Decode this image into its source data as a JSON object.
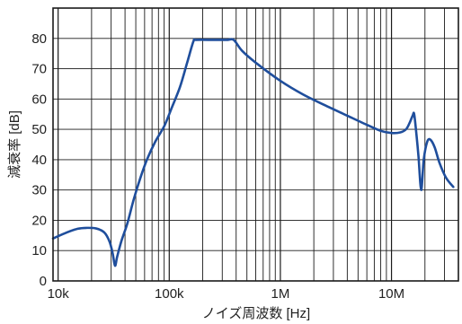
{
  "chart_data": {
    "type": "line",
    "xlabel": "ノイズ周波数 [Hz]",
    "ylabel": "減衰率 [dB]",
    "x_scale": "log",
    "xlim": [
      9000,
      40000000
    ],
    "ylim": [
      0,
      90
    ],
    "x_ticks": [
      {
        "value": 10000,
        "label": "10k"
      },
      {
        "value": 100000,
        "label": "100k"
      },
      {
        "value": 1000000,
        "label": "1M"
      },
      {
        "value": 10000000,
        "label": "10M"
      }
    ],
    "y_ticks": [
      0,
      10,
      20,
      30,
      40,
      50,
      60,
      70,
      80
    ],
    "grid": true,
    "line_color": "#1f4e9c",
    "series": [
      {
        "points": [
          [
            9000,
            14
          ],
          [
            12000,
            16
          ],
          [
            15000,
            17.2
          ],
          [
            18000,
            17.5
          ],
          [
            22000,
            17.3
          ],
          [
            26000,
            16
          ],
          [
            29000,
            13
          ],
          [
            31000,
            9
          ],
          [
            32500,
            5
          ],
          [
            34000,
            8
          ],
          [
            37000,
            13
          ],
          [
            42000,
            19
          ],
          [
            48000,
            27
          ],
          [
            55000,
            34
          ],
          [
            63000,
            40
          ],
          [
            75000,
            46
          ],
          [
            90000,
            51
          ],
          [
            105000,
            57
          ],
          [
            125000,
            64
          ],
          [
            145000,
            72
          ],
          [
            165000,
            79
          ],
          [
            175000,
            79.5
          ],
          [
            250000,
            79.5
          ],
          [
            330000,
            79.5
          ],
          [
            380000,
            79.5
          ],
          [
            450000,
            76
          ],
          [
            600000,
            72
          ],
          [
            1000000,
            66
          ],
          [
            1600000,
            61.5
          ],
          [
            2500000,
            58
          ],
          [
            4000000,
            54.5
          ],
          [
            6000000,
            51.5
          ],
          [
            8000000,
            49.5
          ],
          [
            10000000,
            48.8
          ],
          [
            12000000,
            49
          ],
          [
            13500000,
            50
          ],
          [
            14500000,
            52
          ],
          [
            15500000,
            54.5
          ],
          [
            16000000,
            55
          ],
          [
            16800000,
            48
          ],
          [
            17500000,
            41
          ],
          [
            18500000,
            30
          ],
          [
            19500000,
            40
          ],
          [
            21000000,
            46
          ],
          [
            22500000,
            46.5
          ],
          [
            24500000,
            44
          ],
          [
            27000000,
            39
          ],
          [
            31000000,
            34
          ],
          [
            36000000,
            31
          ]
        ]
      }
    ]
  }
}
